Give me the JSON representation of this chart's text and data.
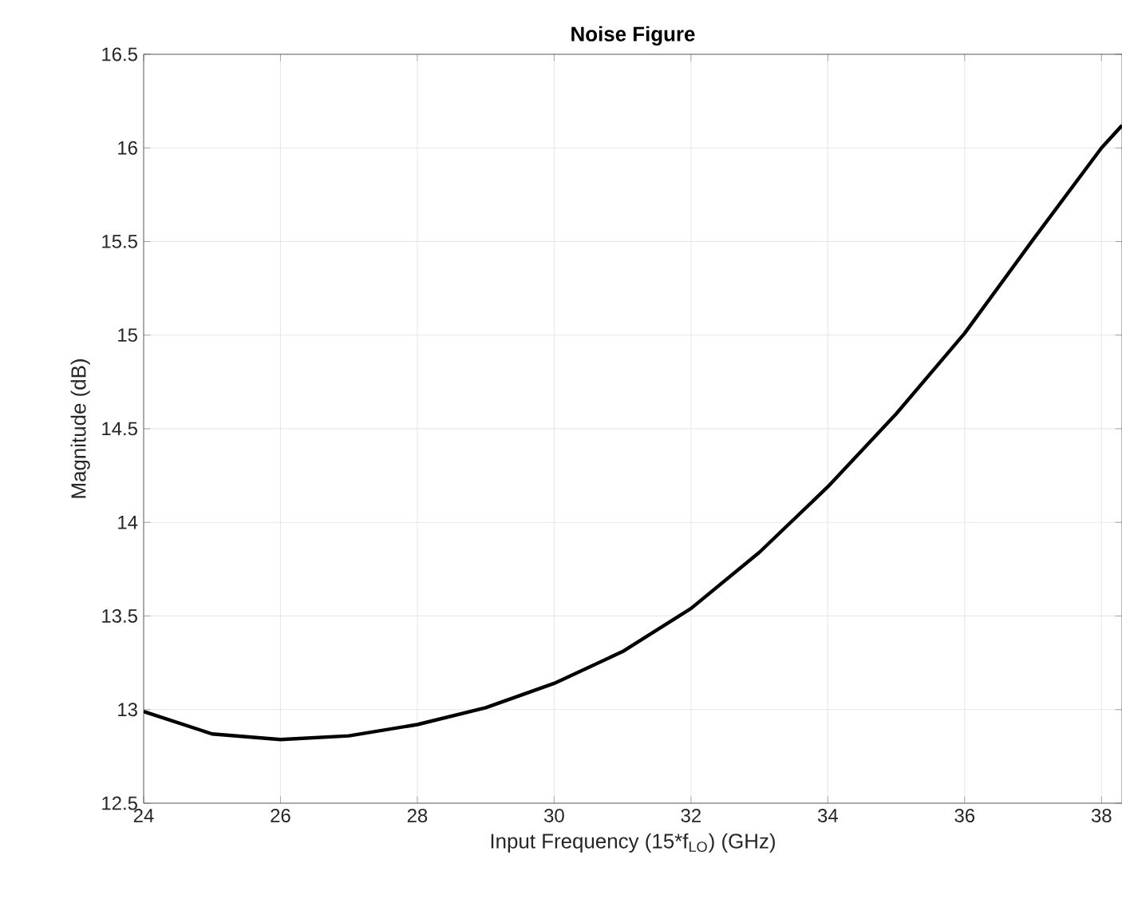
{
  "chart_data": {
    "type": "line",
    "title": "Noise Figure",
    "xlabel": "Input Frequency (15*f$_{LO}$) (GHz)",
    "ylabel": "Magnitude (dB)",
    "x": [
      24,
      25,
      26,
      27,
      28,
      29,
      30,
      31,
      32,
      33,
      34,
      35,
      36,
      37,
      38,
      38.3
    ],
    "series": [
      {
        "color": "#000000",
        "values": [
          12.99,
          12.87,
          12.84,
          12.86,
          12.92,
          13.01,
          13.14,
          13.31,
          13.54,
          13.84,
          14.19,
          14.58,
          15.01,
          15.51,
          16.0,
          16.12
        ]
      }
    ],
    "xlim": [
      24,
      38.3
    ],
    "ylim": [
      12.5,
      16.5
    ],
    "xticks": [
      24,
      26,
      28,
      30,
      32,
      34,
      36,
      38
    ],
    "yticks": [
      12.5,
      13,
      13.5,
      14,
      14.5,
      15,
      15.5,
      16,
      16.5
    ],
    "grid": true,
    "line_style": "solid",
    "marker": "none"
  }
}
